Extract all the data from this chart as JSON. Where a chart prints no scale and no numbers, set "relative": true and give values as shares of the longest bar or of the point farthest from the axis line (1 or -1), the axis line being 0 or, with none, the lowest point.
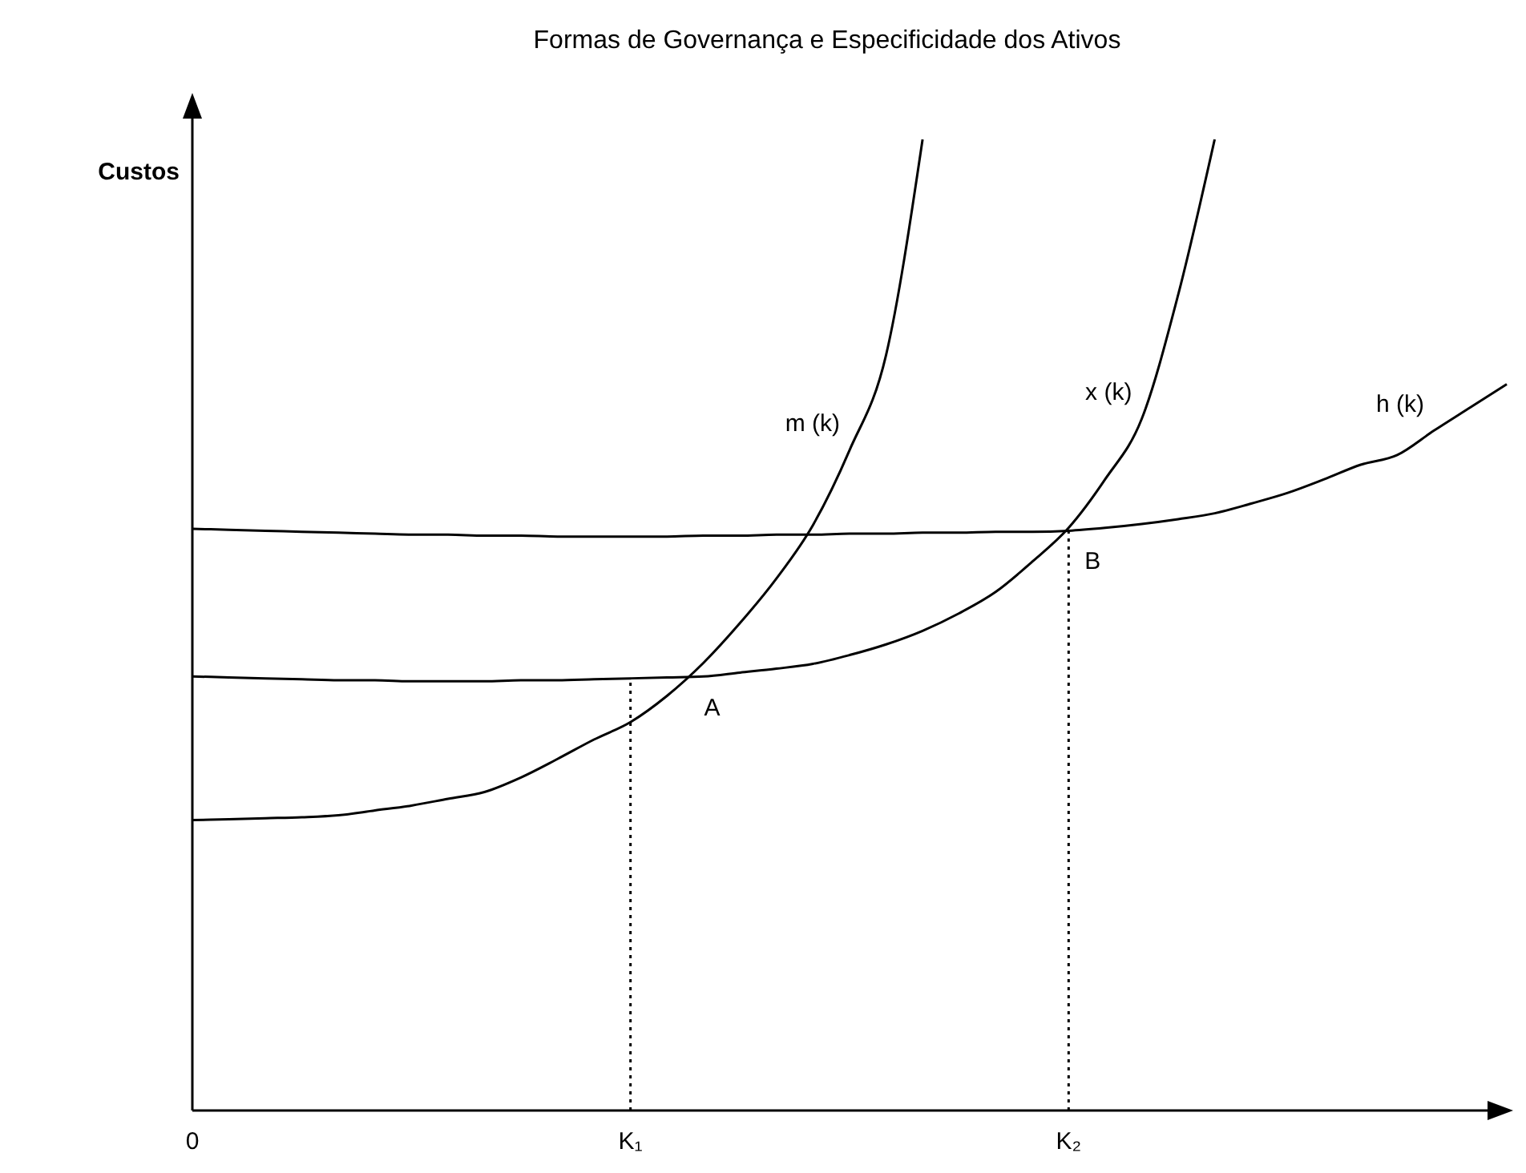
{
  "chart_data": {
    "type": "line",
    "title": "Formas de Governança e Especificidade dos Ativos",
    "ylabel": "Custos",
    "relative": true,
    "line_style": "solid",
    "categories": [
      "0",
      null,
      null,
      null,
      null,
      null,
      null,
      null,
      null,
      null,
      null,
      null,
      "K₁",
      null,
      null,
      null,
      null,
      null,
      null,
      null,
      null,
      null,
      null,
      null,
      "K₂",
      null,
      null,
      null,
      null,
      null,
      null,
      null,
      null,
      null,
      null,
      null,
      null
    ],
    "series": [
      {
        "name": "m (k)",
        "color": "#000000",
        "values": [
          0.299,
          0.3,
          0.301,
          0.302,
          0.304,
          0.309,
          0.314,
          0.321,
          0.328,
          0.343,
          0.362,
          0.382,
          0.4,
          0.427,
          0.461,
          0.502,
          0.548,
          0.603,
          0.68,
          0.778,
          1.0,
          null,
          null,
          null,
          null,
          null,
          null,
          null,
          null,
          null,
          null,
          null,
          null,
          null,
          null,
          null,
          null
        ]
      },
      {
        "name": "x (k)",
        "color": "#000000",
        "values": [
          0.447,
          0.446,
          0.445,
          0.444,
          0.443,
          0.443,
          0.442,
          0.442,
          0.442,
          0.443,
          0.443,
          0.444,
          0.445,
          0.446,
          0.447,
          0.451,
          0.455,
          0.46,
          0.469,
          0.48,
          0.494,
          0.512,
          0.534,
          0.565,
          0.6,
          0.65,
          0.712,
          0.84,
          1.0,
          null,
          null,
          null,
          null,
          null,
          null,
          null,
          null
        ]
      },
      {
        "name": "h (k)",
        "color": "#000000",
        "values": [
          0.599,
          0.598,
          0.597,
          0.596,
          0.595,
          0.594,
          0.593,
          0.593,
          0.592,
          0.592,
          0.591,
          0.591,
          0.591,
          0.591,
          0.592,
          0.592,
          0.593,
          0.593,
          0.594,
          0.594,
          0.595,
          0.595,
          0.596,
          0.596,
          0.597,
          0.6,
          0.604,
          0.609,
          0.615,
          0.625,
          0.636,
          0.65,
          0.665,
          0.675,
          0.7,
          0.724,
          0.748
        ]
      }
    ],
    "ref_lines": [
      {
        "axis": "x",
        "value": "K₁",
        "line_style": "dotted",
        "color": "#000000"
      },
      {
        "axis": "x",
        "value": "K₂",
        "line_style": "dotted",
        "color": "#000000"
      }
    ],
    "annotations": [
      {
        "text": "A",
        "y": 0.446
      },
      {
        "text": "B",
        "x": "K₂",
        "y": 0.597
      }
    ]
  }
}
